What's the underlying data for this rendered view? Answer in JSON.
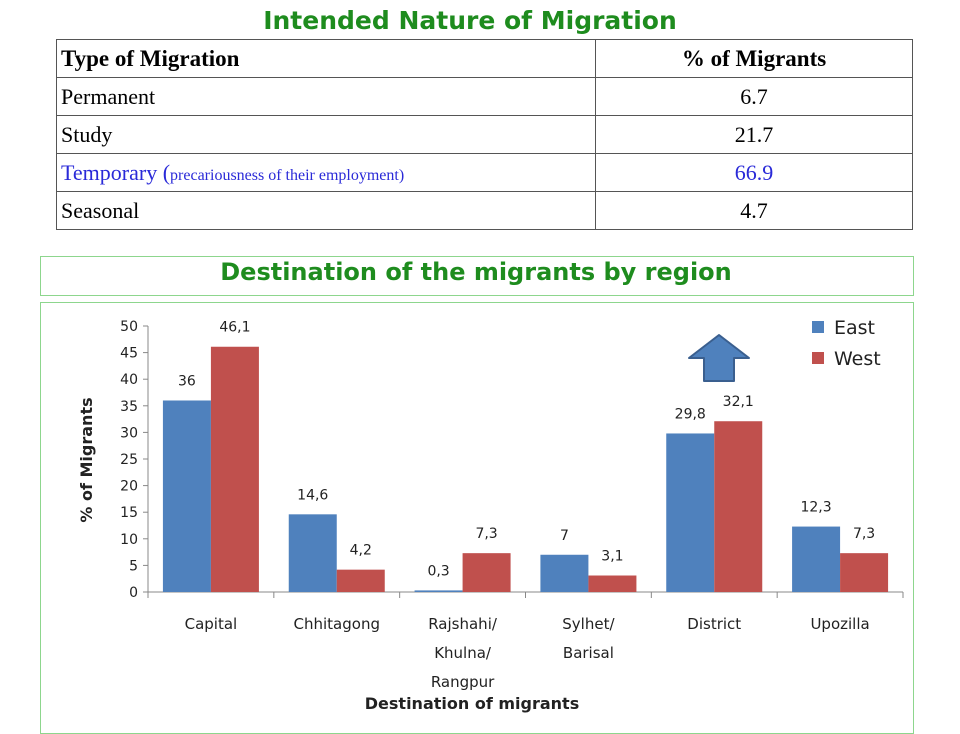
{
  "table_title": "Intended Nature of Migration",
  "table": {
    "headers": [
      "Type of Migration",
      "% of Migrants"
    ],
    "rows": [
      {
        "label": "Permanent",
        "note": "",
        "value": "6.7"
      },
      {
        "label": "Study",
        "note": "",
        "value": "21.7"
      },
      {
        "label": "Temporary (",
        "note": "precariousness of their employment)",
        "value": "66.9"
      },
      {
        "label": "Seasonal",
        "note": "",
        "value": "4.7"
      }
    ]
  },
  "chart_title": "Destination of the migrants by region",
  "colors": {
    "east": "#4f81bd",
    "west": "#c0504d",
    "title_green": "#1e8c1e",
    "highlight_blue": "#2a2ad8"
  },
  "icons": {
    "arrow": "up-arrow-icon"
  },
  "chart_data": {
    "type": "bar",
    "categories": [
      [
        "Capital"
      ],
      [
        "Chhitagong"
      ],
      [
        "Rajshahi/",
        "Khulna/",
        "Rangpur"
      ],
      [
        "Sylhet/",
        "Barisal"
      ],
      [
        "District"
      ],
      [
        "Upozilla"
      ]
    ],
    "series": [
      {
        "name": "East",
        "values": [
          36,
          14.6,
          0.3,
          7,
          29.8,
          12.3
        ],
        "labels": [
          "36",
          "14,6",
          "0,3",
          "7",
          "29,8",
          "12,3"
        ]
      },
      {
        "name": "West",
        "values": [
          46.1,
          4.2,
          7.3,
          3.1,
          32.1,
          7.3
        ],
        "labels": [
          "46,1",
          "4,2",
          "7,3",
          "3,1",
          "32,1",
          "7,3"
        ]
      }
    ],
    "xlabel": "Destination of migrants",
    "ylabel": "% of Migrants",
    "ylim": [
      0,
      50
    ],
    "yticks": [
      0,
      5,
      10,
      15,
      20,
      25,
      30,
      35,
      40,
      45,
      50
    ],
    "grid": false,
    "legend": "top-right"
  }
}
